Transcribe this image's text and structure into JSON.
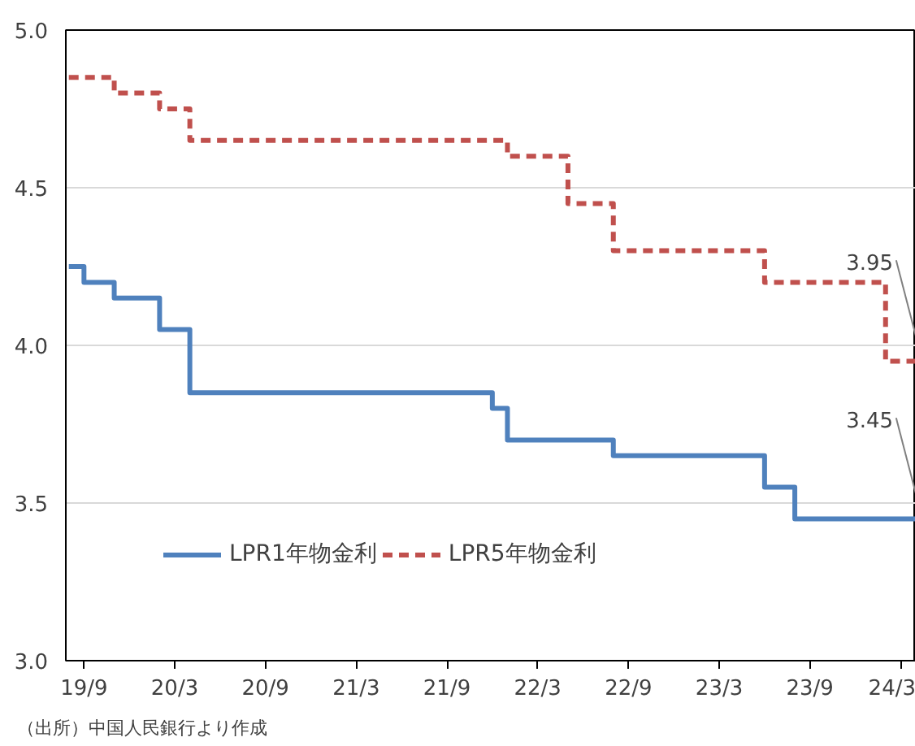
{
  "chart_data": {
    "type": "step",
    "categories": [
      null,
      "19/9",
      null,
      null,
      null,
      null,
      null,
      "20/3",
      null,
      null,
      null,
      null,
      null,
      "20/9",
      null,
      null,
      null,
      null,
      null,
      "21/3",
      null,
      null,
      null,
      null,
      null,
      "21/9",
      null,
      null,
      null,
      null,
      null,
      "22/3",
      null,
      null,
      null,
      null,
      null,
      "22/9",
      null,
      null,
      null,
      null,
      null,
      "23/3",
      null,
      null,
      null,
      null,
      null,
      "23/9",
      null,
      null,
      null,
      null,
      null,
      "24/3",
      null
    ],
    "series": [
      {
        "name": "LPR1年物金利",
        "color": "#4f81bd",
        "line_style": "solid",
        "values": [
          4.25,
          4.2,
          4.2,
          4.15,
          4.15,
          4.15,
          4.05,
          4.05,
          3.85,
          3.85,
          3.85,
          3.85,
          3.85,
          3.85,
          3.85,
          3.85,
          3.85,
          3.85,
          3.85,
          3.85,
          3.85,
          3.85,
          3.85,
          3.85,
          3.85,
          3.85,
          3.85,
          3.85,
          3.8,
          3.7,
          3.7,
          3.7,
          3.7,
          3.7,
          3.7,
          3.7,
          3.65,
          3.65,
          3.65,
          3.65,
          3.65,
          3.65,
          3.65,
          3.65,
          3.65,
          3.65,
          3.55,
          3.55,
          3.45,
          3.45,
          3.45,
          3.45,
          3.45,
          3.45,
          3.45,
          3.45,
          3.45
        ]
      },
      {
        "name": "LPR5年物金利",
        "color": "#c0504d",
        "line_style": "dashed",
        "values": [
          4.85,
          4.85,
          4.85,
          4.8,
          4.8,
          4.8,
          4.75,
          4.75,
          4.65,
          4.65,
          4.65,
          4.65,
          4.65,
          4.65,
          4.65,
          4.65,
          4.65,
          4.65,
          4.65,
          4.65,
          4.65,
          4.65,
          4.65,
          4.65,
          4.65,
          4.65,
          4.65,
          4.65,
          4.65,
          4.6,
          4.6,
          4.6,
          4.6,
          4.45,
          4.45,
          4.45,
          4.3,
          4.3,
          4.3,
          4.3,
          4.3,
          4.3,
          4.3,
          4.3,
          4.3,
          4.3,
          4.2,
          4.2,
          4.2,
          4.2,
          4.2,
          4.2,
          4.2,
          4.2,
          3.95,
          3.95,
          3.95
        ]
      }
    ],
    "ylim": [
      3.0,
      5.0
    ],
    "yticks": [
      {
        "value": 3.0,
        "label": "3.0"
      },
      {
        "value": 3.5,
        "label": "3.5"
      },
      {
        "value": 4.0,
        "label": "4.0"
      },
      {
        "value": 4.5,
        "label": "4.5"
      },
      {
        "value": 5.0,
        "label": "5.0"
      }
    ],
    "grid": "y",
    "legend": "bottom",
    "marker": "none",
    "annotations": [
      "3.95",
      "3.45",
      "（出所）中国人民銀行より作成"
    ]
  }
}
